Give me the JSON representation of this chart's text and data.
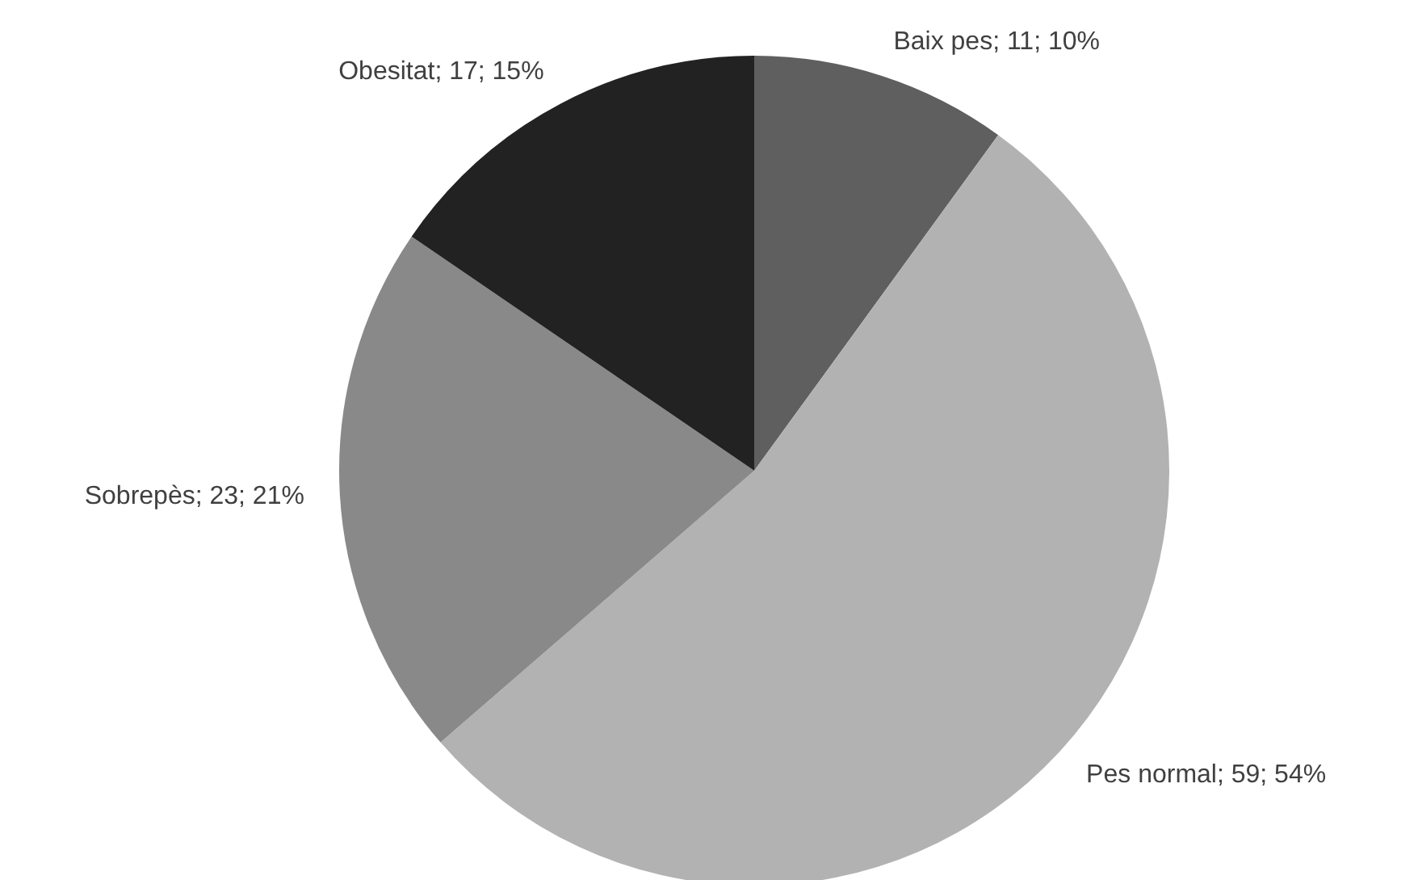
{
  "chart_data": {
    "type": "pie",
    "categories": [
      "Baix pes",
      "Pes normal",
      "Sobrepès",
      "Obesitat"
    ],
    "values": [
      11,
      59,
      23,
      17
    ],
    "colors": [
      "#5f5f5f",
      "#b2b2b2",
      "#898989",
      "#222222"
    ],
    "value_labels": [
      "11; 10%",
      "59; 54%",
      "23; 21%",
      "17; 15%"
    ],
    "legend": false
  }
}
